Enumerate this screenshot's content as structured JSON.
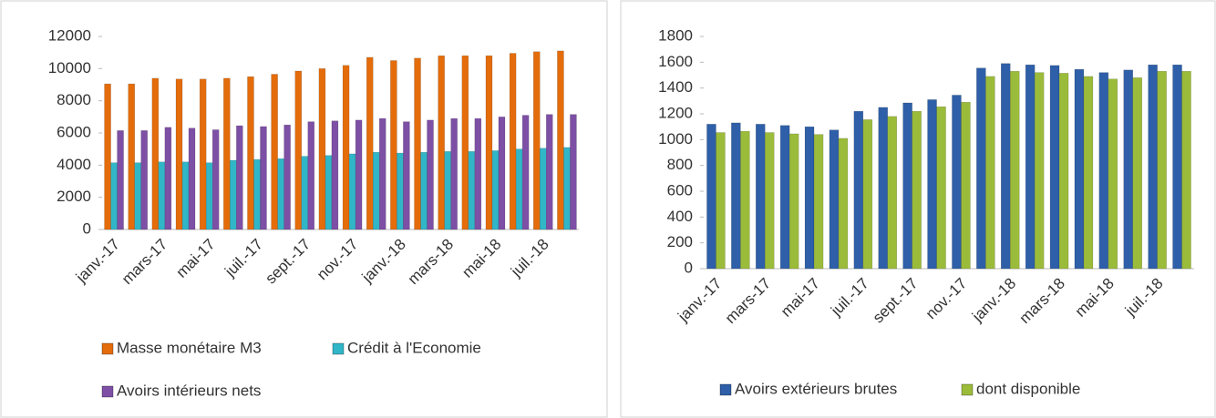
{
  "chart_data": [
    {
      "type": "bar",
      "categories": [
        "janv.-17",
        null,
        "mars-17",
        null,
        "mai-17",
        null,
        "juil.-17",
        null,
        "sept.-17",
        null,
        "nov.-17",
        null,
        "janv.-18",
        null,
        "mars-18",
        null,
        "mai-18",
        null,
        "juil.-18",
        null
      ],
      "series": [
        {
          "name": "Masse monétaire M3",
          "color": "#e46c0a",
          "values": [
            9050,
            9050,
            9400,
            9350,
            9350,
            9400,
            9500,
            9650,
            9850,
            10000,
            10200,
            10700,
            10500,
            10650,
            10800,
            10800,
            10800,
            10950,
            11050,
            11100
          ]
        },
        {
          "name": "Crédit à l'Economie",
          "color": "#31b6c8",
          "values": [
            4150,
            4150,
            4200,
            4200,
            4150,
            4300,
            4350,
            4400,
            4550,
            4600,
            4700,
            4800,
            4750,
            4800,
            4850,
            4850,
            4900,
            5000,
            5050,
            5100
          ]
        },
        {
          "name": "Avoirs intérieurs nets",
          "color": "#7d4fa5",
          "values": [
            6150,
            6150,
            6350,
            6300,
            6200,
            6450,
            6400,
            6500,
            6700,
            6750,
            6800,
            6900,
            6700,
            6800,
            6900,
            6900,
            7000,
            7100,
            7150,
            7150
          ]
        }
      ],
      "ylim": [
        0,
        12000
      ],
      "yticks": [
        0,
        2000,
        4000,
        6000,
        8000,
        10000,
        12000
      ]
    },
    {
      "type": "bar",
      "categories": [
        "janv.-17",
        null,
        "mars-17",
        null,
        "mai-17",
        null,
        "juil.-17",
        null,
        "sept.-17",
        null,
        "nov.-17",
        null,
        "janv.-18",
        null,
        "mars-18",
        null,
        "mai-18",
        null,
        "juil.-18",
        null
      ],
      "series": [
        {
          "name": "Avoirs extérieurs brutes",
          "color": "#2e5fa8",
          "values": [
            1120,
            1130,
            1120,
            1110,
            1100,
            1075,
            1220,
            1250,
            1285,
            1310,
            1345,
            1555,
            1590,
            1580,
            1575,
            1545,
            1520,
            1540,
            1580,
            1580
          ]
        },
        {
          "name": "dont disponible",
          "color": "#9bbb3a",
          "values": [
            1055,
            1065,
            1055,
            1045,
            1040,
            1010,
            1155,
            1180,
            1220,
            1255,
            1290,
            1490,
            1530,
            1520,
            1515,
            1490,
            1470,
            1480,
            1530,
            1530
          ]
        }
      ],
      "ylim": [
        0,
        1800
      ],
      "yticks": [
        0,
        200,
        400,
        600,
        800,
        1000,
        1200,
        1400,
        1600,
        1800
      ]
    }
  ]
}
